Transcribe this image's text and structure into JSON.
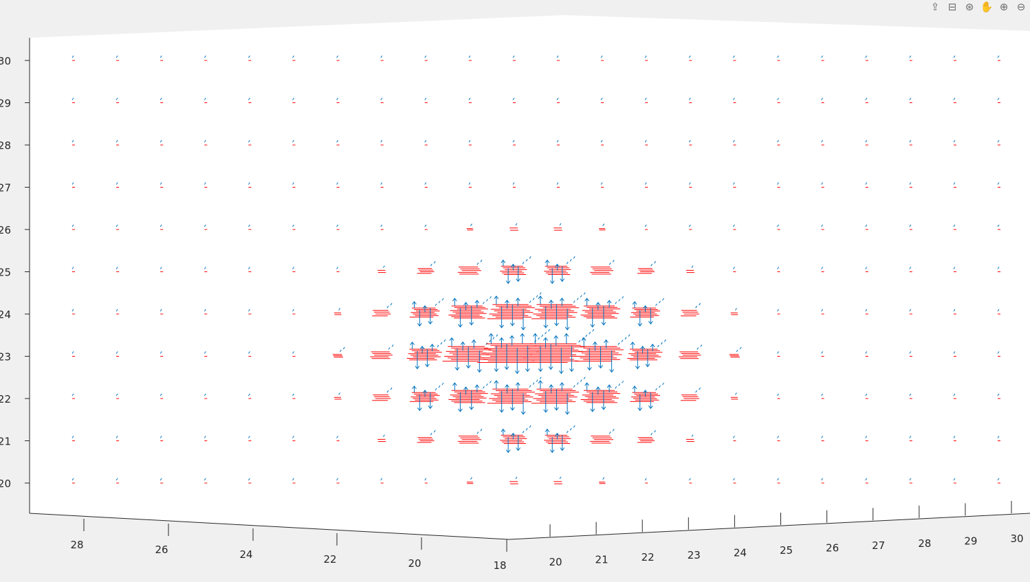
{
  "toolbar": {
    "buttons": [
      {
        "name": "export-icon",
        "glyph": "⇪"
      },
      {
        "name": "brush-icon",
        "glyph": "⊟"
      },
      {
        "name": "rotate-3d-icon",
        "glyph": "⊛"
      },
      {
        "name": "pan-hand-icon",
        "glyph": "✋"
      },
      {
        "name": "zoom-in-icon",
        "glyph": "⊕"
      },
      {
        "name": "zoom-out-icon",
        "glyph": "⊖"
      }
    ]
  },
  "chart_data": {
    "type": "quiver3",
    "title": "",
    "xlabel": "",
    "ylabel": "",
    "zlabel": "",
    "colors": {
      "primary": "#0072bd",
      "secondary": "#ff0000",
      "axes": "#262626"
    },
    "x_axis": {
      "lim": [
        18,
        30
      ],
      "ticks": [
        "20",
        "21",
        "22",
        "23",
        "24",
        "25",
        "26",
        "27",
        "28",
        "29",
        "30"
      ],
      "origin_label": "18"
    },
    "y_axis": {
      "lim": [
        18,
        30
      ],
      "ticks": [
        "28",
        "26",
        "24",
        "22",
        "20"
      ]
    },
    "z_axis": {
      "lim": [
        19.3,
        30.4
      ],
      "ticks": [
        "30",
        "29",
        "28",
        "27",
        "26",
        "25",
        "24",
        "23",
        "22",
        "21",
        "20"
      ]
    },
    "field": {
      "z_levels": [
        20,
        21,
        22,
        23,
        24,
        25,
        26,
        27,
        28,
        29,
        30
      ],
      "columns": 22,
      "center_column": 10.5,
      "center_z": 23
    }
  }
}
